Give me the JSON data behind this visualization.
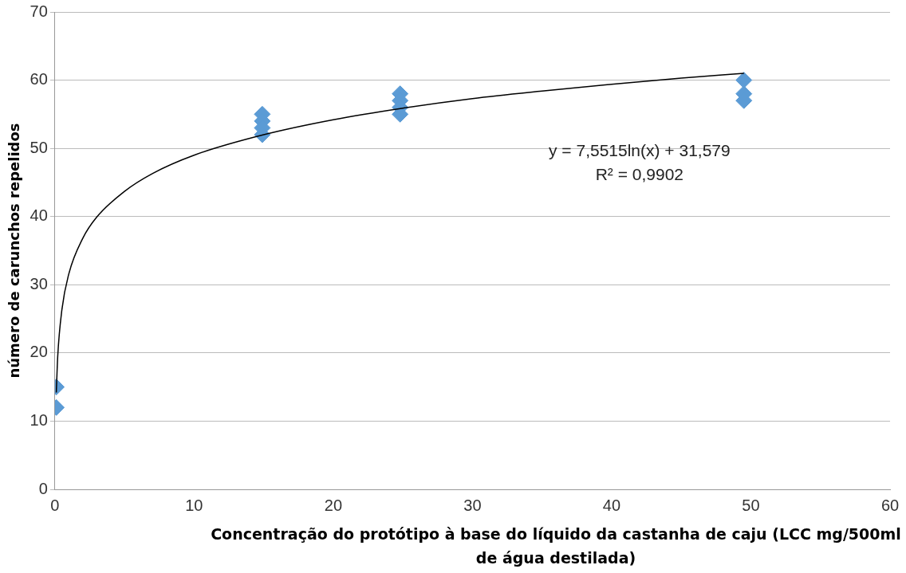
{
  "chart_data": {
    "type": "scatter",
    "xlabel": "Concentração do protótipo à base do líquido da castanha de caju (LCC mg/500ml de água destilada)",
    "ylabel": "número de carunchos repelidos",
    "series": [
      {
        "color": "#5b9bd5",
        "marker": "diamond",
        "x": [
          0.1,
          0.1,
          14.9,
          14.9,
          14.9,
          14.9,
          24.8,
          24.8,
          24.8,
          24.8,
          49.5,
          49.5,
          49.5
        ],
        "values": [
          15,
          12,
          55,
          54,
          53,
          52,
          58,
          57,
          56,
          55,
          60,
          58,
          57
        ]
      },
      {
        "type": "line",
        "color": "#000000",
        "marker": "none",
        "line_style": "solid",
        "x": [
          0.1,
          0.2,
          0.5,
          1,
          2,
          3,
          5,
          7,
          10,
          15,
          20,
          25,
          30,
          35,
          40,
          45,
          49.5
        ],
        "values": [
          14.2,
          19.4,
          26.3,
          31.6,
          36.8,
          39.9,
          43.7,
          46.3,
          49.0,
          52.0,
          54.2,
          55.9,
          57.3,
          58.4,
          59.4,
          60.3,
          61.0
        ]
      }
    ],
    "xlim": [
      0,
      60
    ],
    "xticks": [
      0,
      10,
      20,
      30,
      40,
      50,
      60
    ],
    "ylim": [
      0,
      70
    ],
    "yticks": [
      0,
      10,
      20,
      30,
      40,
      50,
      60,
      70
    ],
    "grid": "y",
    "legend": false,
    "annotations": [
      "y = 7,5515ln(x) + 31,579",
      "R² = 0,9902"
    ]
  }
}
